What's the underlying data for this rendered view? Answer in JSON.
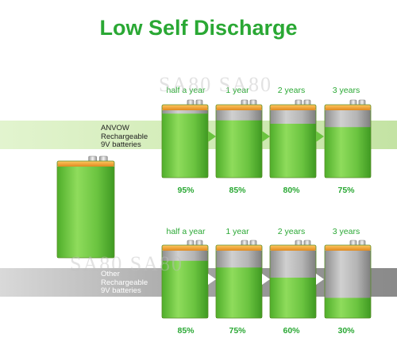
{
  "title": "Low Self Discharge",
  "watermark": "SA80 SA80",
  "colors": {
    "accent": "#2aa834",
    "battery_green": "#6bc440",
    "battery_gray": "#a8a8a8",
    "cap_orange": "#f0a030"
  },
  "anvow": {
    "label_lines": [
      "ANVOW",
      "Rechargeable",
      "9V batteries"
    ],
    "periods": [
      "half a year",
      "1 year",
      "2 years",
      "3 years"
    ],
    "percents": [
      "95%",
      "85%",
      "80%",
      "75%"
    ],
    "levels": [
      0.95,
      0.85,
      0.8,
      0.75
    ]
  },
  "other": {
    "label_lines": [
      "Other",
      "Rechargeable",
      "9V batteries"
    ],
    "periods": [
      "half a year",
      "1 year",
      "2 years",
      "3 years"
    ],
    "percents": [
      "85%",
      "75%",
      "60%",
      "30%"
    ],
    "levels": [
      0.85,
      0.75,
      0.6,
      0.3
    ]
  }
}
